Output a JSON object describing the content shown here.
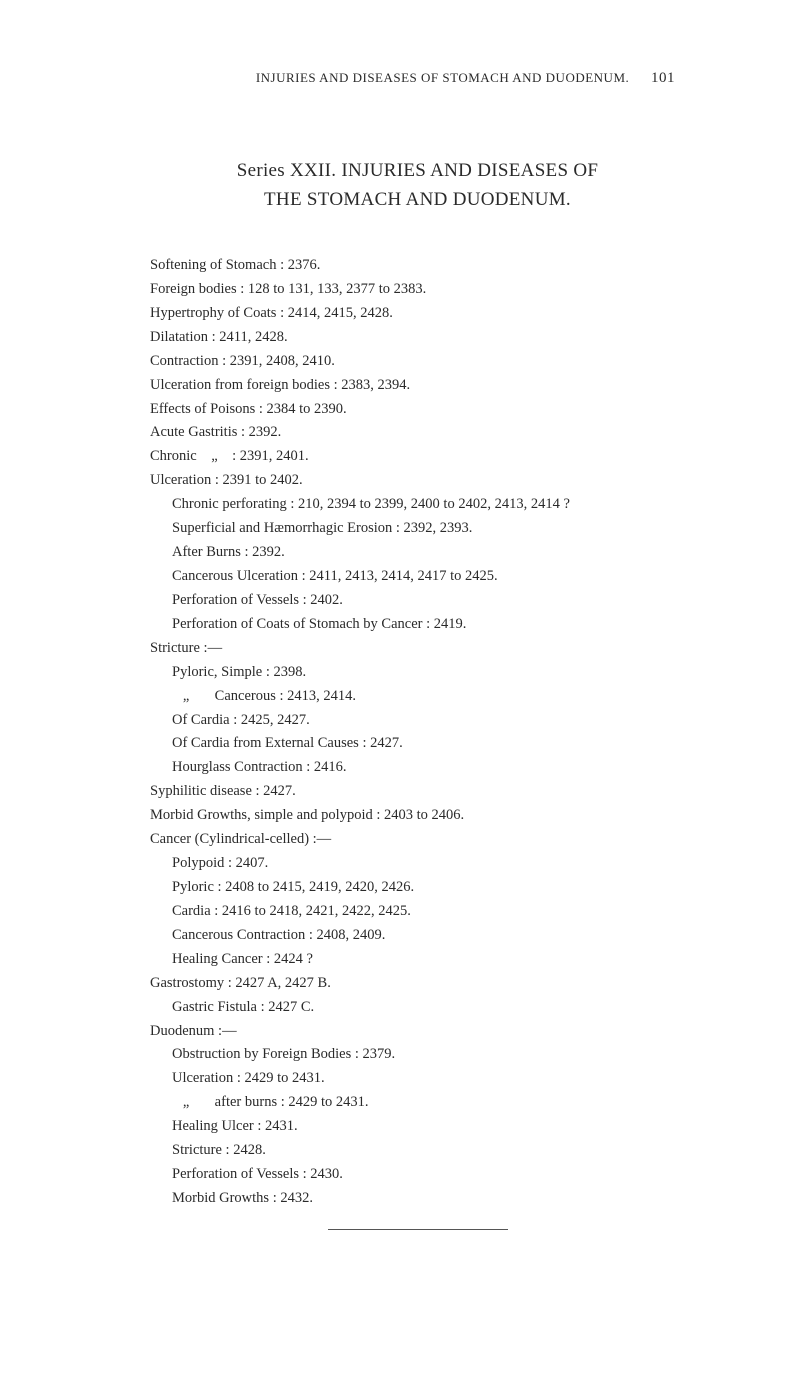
{
  "header": {
    "running_title": "INJURIES AND DISEASES OF STOMACH AND DUODENUM.",
    "page_number": "101"
  },
  "title": {
    "line1": "Series XXII.   INJURIES AND DISEASES OF",
    "line2": "THE STOMACH AND DUODENUM."
  },
  "entries": [
    {
      "text": "Softening of Stomach : 2376.",
      "indent": "entry"
    },
    {
      "text": "Foreign bodies : 128 to 131, 133, 2377 to 2383.",
      "indent": "entry"
    },
    {
      "text": "Hypertrophy of Coats : 2414, 2415, 2428.",
      "indent": "entry"
    },
    {
      "text": "Dilatation : 2411, 2428.",
      "indent": "entry"
    },
    {
      "text": "Contraction : 2391, 2408, 2410.",
      "indent": "entry"
    },
    {
      "text": "Ulceration from foreign bodies : 2383, 2394.",
      "indent": "entry"
    },
    {
      "text": "Effects of Poisons : 2384 to 2390.",
      "indent": "entry"
    },
    {
      "text": "Acute Gastritis : 2392.",
      "indent": "entry"
    },
    {
      "text": "Chronic    „    : 2391, 2401.",
      "indent": "entry"
    },
    {
      "text": "Ulceration : 2391 to 2402.",
      "indent": "entry"
    },
    {
      "text": "Chronic perforating : 210, 2394 to 2399, 2400 to 2402, 2413, 2414 ?",
      "indent": "sub-entry"
    },
    {
      "text": "Superficial and Hæmorrhagic Erosion : 2392, 2393.",
      "indent": "sub-entry"
    },
    {
      "text": "After Burns : 2392.",
      "indent": "sub-entry"
    },
    {
      "text": "Cancerous Ulceration : 2411, 2413, 2414, 2417 to 2425.",
      "indent": "sub-entry"
    },
    {
      "text": "Perforation of Vessels : 2402.",
      "indent": "sub-entry"
    },
    {
      "text": "Perforation of Coats of Stomach by Cancer : 2419.",
      "indent": "sub-entry"
    },
    {
      "text": "Stricture :—",
      "indent": "group-header"
    },
    {
      "text": "Pyloric, Simple : 2398.",
      "indent": "sub-entry"
    },
    {
      "text": "   „       Cancerous : 2413, 2414.",
      "indent": "sub-entry"
    },
    {
      "text": "Of Cardia : 2425, 2427.",
      "indent": "sub-entry"
    },
    {
      "text": "Of Cardia from External Causes : 2427.",
      "indent": "sub-entry"
    },
    {
      "text": "Hourglass Contraction : 2416.",
      "indent": "sub-entry"
    },
    {
      "text": "Syphilitic disease : 2427.",
      "indent": "entry"
    },
    {
      "text": "Morbid Growths, simple and polypoid : 2403 to 2406.",
      "indent": "entry"
    },
    {
      "text": "Cancer (Cylindrical-celled) :—",
      "indent": "entry"
    },
    {
      "text": "Polypoid : 2407.",
      "indent": "sub-entry"
    },
    {
      "text": "Pyloric : 2408 to 2415, 2419, 2420, 2426.",
      "indent": "sub-entry"
    },
    {
      "text": "Cardia : 2416 to 2418, 2421, 2422, 2425.",
      "indent": "sub-entry"
    },
    {
      "text": "Cancerous Contraction : 2408, 2409.",
      "indent": "sub-entry"
    },
    {
      "text": "Healing Cancer : 2424 ?",
      "indent": "sub-entry"
    },
    {
      "text": "Gastrostomy : 2427 A, 2427 B.",
      "indent": "entry"
    },
    {
      "text": "Gastric Fistula : 2427 C.",
      "indent": "sub-entry"
    },
    {
      "text": "Duodenum :—",
      "indent": "entry"
    },
    {
      "text": "Obstruction by Foreign Bodies : 2379.",
      "indent": "sub-entry"
    },
    {
      "text": "Ulceration : 2429 to 2431.",
      "indent": "sub-entry"
    },
    {
      "text": "   „       after burns : 2429 to 2431.",
      "indent": "sub-entry"
    },
    {
      "text": "Healing Ulcer : 2431.",
      "indent": "sub-entry"
    },
    {
      "text": "Stricture : 2428.",
      "indent": "sub-entry"
    },
    {
      "text": "Perforation of Vessels : 2430.",
      "indent": "sub-entry"
    },
    {
      "text": "Morbid Growths : 2432.",
      "indent": "sub-entry"
    }
  ]
}
